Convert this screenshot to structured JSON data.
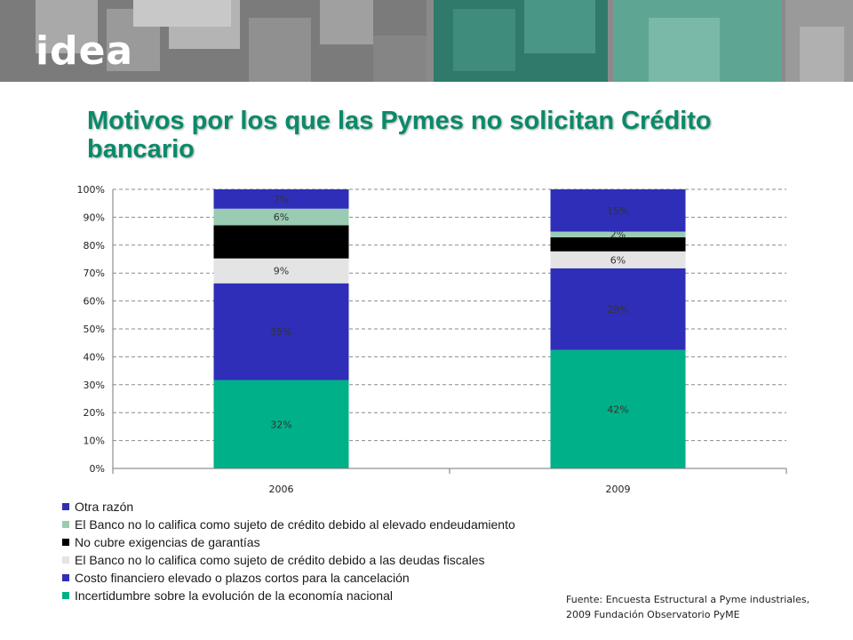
{
  "header": {
    "logo_text": "idea",
    "title": "Motivos por los que las Pymes no solicitan Crédito bancario"
  },
  "source_note": {
    "line1": "Fuente: Encuesta Estructural a Pyme industriales,",
    "line2": "2009 Fundación Observatorio PyME"
  },
  "colors": {
    "title": "#0a8a6a",
    "banner_teal": "#2f7a6a",
    "banner_gray": "#7a7a7a"
  },
  "chart_data": {
    "type": "bar",
    "stacked": true,
    "percent_stacked": true,
    "categories": [
      "2006",
      "2009"
    ],
    "ylim": [
      0,
      100
    ],
    "yticks": [
      "0%",
      "10%",
      "20%",
      "30%",
      "40%",
      "50%",
      "60%",
      "70%",
      "80%",
      "90%",
      "100%"
    ],
    "grid": "dashed horizontal",
    "legend_position": "bottom-left",
    "series": [
      {
        "name": "Incertidumbre sobre la evolución de la economía nacional",
        "color": "#00b088",
        "values": [
          32,
          42
        ],
        "labels": [
          "32%",
          "42%"
        ]
      },
      {
        "name": "Costo financiero elevado o plazos cortos para la cancelación",
        "color": "#2e2eb8",
        "values": [
          35,
          29
        ],
        "labels": [
          "35%",
          "29%"
        ]
      },
      {
        "name": "El Banco no lo califica como sujeto de crédito debido a las deudas fiscales",
        "color": "#e4e4e4",
        "values": [
          9,
          6
        ],
        "labels": [
          "9%",
          "6%"
        ]
      },
      {
        "name": "No cubre exigencias de garantías",
        "color": "#000000",
        "values": [
          12,
          5
        ],
        "labels": [
          "",
          ""
        ]
      },
      {
        "name": "El Banco no lo califica como sujeto de crédito debido al elevado endeudamiento",
        "color": "#99ccb2",
        "values": [
          6,
          2
        ],
        "labels": [
          "6%",
          "2%"
        ]
      },
      {
        "name": "Otra razón",
        "color": "#2e2eb8",
        "values": [
          7,
          15
        ],
        "labels": [
          "7%",
          "15%"
        ]
      }
    ]
  }
}
